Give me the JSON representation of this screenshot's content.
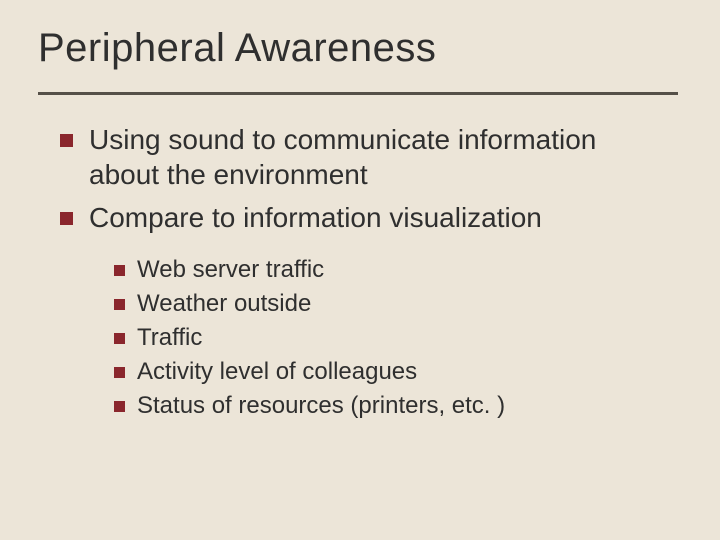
{
  "slide": {
    "title": "Peripheral Awareness",
    "background_color": "#ece5d8",
    "title_color": "#2f2f2f",
    "body_text_color": "#2f2f2f",
    "bullet_color": "#8a262c",
    "rule_color": "#555048",
    "title_fontsize": 40,
    "level1_fontsize": 28,
    "level2_fontsize": 24,
    "items": [
      {
        "text": "Using sound to communicate information about the environment"
      },
      {
        "text": "Compare to information visualization"
      }
    ],
    "subitems": [
      {
        "text": "Web server traffic"
      },
      {
        "text": "Weather outside"
      },
      {
        "text": "Traffic"
      },
      {
        "text": "Activity level of colleagues"
      },
      {
        "text": "Status of resources (printers, etc. )"
      }
    ]
  }
}
